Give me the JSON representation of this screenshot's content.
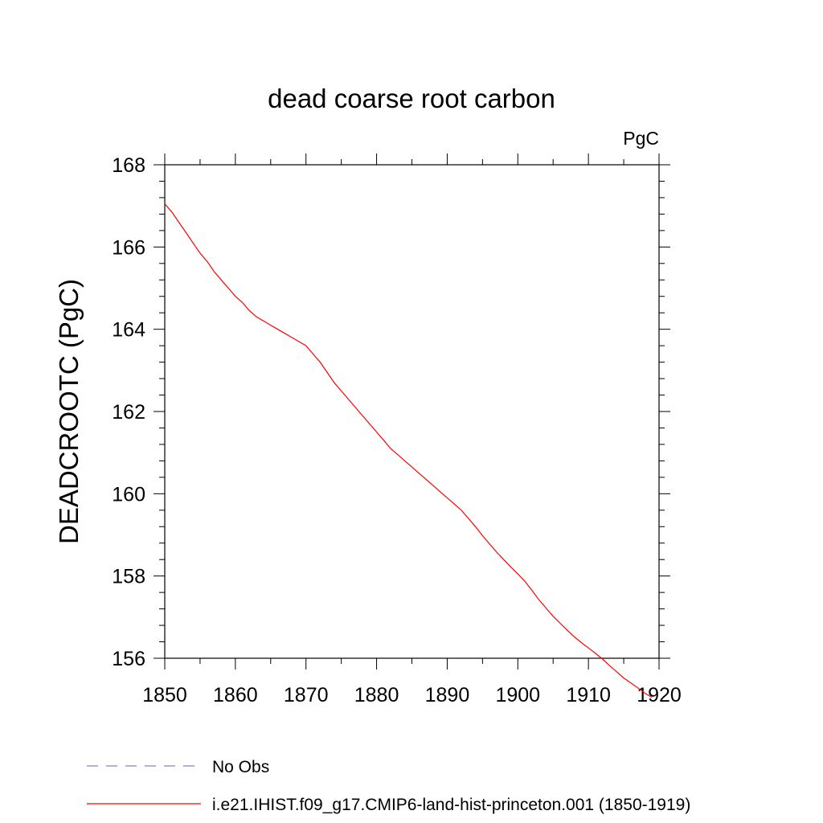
{
  "chart_data": {
    "type": "line",
    "title": "dead coarse root carbon",
    "units_label": "PgC",
    "xlabel": "",
    "ylabel": "DEADCROOTC  (PgC)",
    "xlim": [
      1850,
      1920
    ],
    "ylim": [
      156,
      168
    ],
    "x_ticks": [
      1850,
      1860,
      1870,
      1880,
      1890,
      1900,
      1910,
      1920
    ],
    "y_ticks": [
      156,
      158,
      160,
      162,
      164,
      166,
      168
    ],
    "grid": false,
    "legend_position": "bottom",
    "series": [
      {
        "name": "i.e21.IHIST.f09_g17.CMIP6-land-hist-princeton.001 (1850-1919)",
        "color": "#ff0000",
        "dash": "solid",
        "x": [
          1850,
          1851,
          1852,
          1853,
          1854,
          1855,
          1856,
          1857,
          1858,
          1859,
          1860,
          1861,
          1862,
          1863,
          1864,
          1865,
          1866,
          1867,
          1868,
          1869,
          1870,
          1871,
          1872,
          1873,
          1874,
          1875,
          1876,
          1877,
          1878,
          1879,
          1880,
          1881,
          1882,
          1883,
          1884,
          1885,
          1886,
          1887,
          1888,
          1889,
          1890,
          1891,
          1892,
          1893,
          1894,
          1895,
          1896,
          1897,
          1898,
          1899,
          1900,
          1901,
          1902,
          1903,
          1904,
          1905,
          1906,
          1907,
          1908,
          1909,
          1910,
          1911,
          1912,
          1913,
          1914,
          1915,
          1916,
          1917,
          1918,
          1919
        ],
        "y": [
          167.05,
          166.85,
          166.6,
          166.35,
          166.1,
          165.85,
          165.65,
          165.4,
          165.2,
          165.0,
          164.8,
          164.65,
          164.45,
          164.3,
          164.2,
          164.1,
          164.0,
          163.9,
          163.8,
          163.7,
          163.6,
          163.4,
          163.2,
          162.95,
          162.7,
          162.5,
          162.3,
          162.1,
          161.9,
          161.7,
          161.5,
          161.3,
          161.1,
          160.95,
          160.8,
          160.65,
          160.5,
          160.35,
          160.2,
          160.05,
          159.9,
          159.75,
          159.6,
          159.4,
          159.2,
          158.98,
          158.78,
          158.58,
          158.4,
          158.22,
          158.05,
          157.87,
          157.65,
          157.42,
          157.22,
          157.02,
          156.85,
          156.68,
          156.52,
          156.38,
          156.25,
          156.12,
          155.98,
          155.82,
          155.67,
          155.52,
          155.4,
          155.28,
          155.15,
          155.05
        ]
      },
      {
        "name": "No Obs",
        "color": "#8080c0",
        "dash": "dashed",
        "x": [],
        "y": []
      }
    ]
  }
}
